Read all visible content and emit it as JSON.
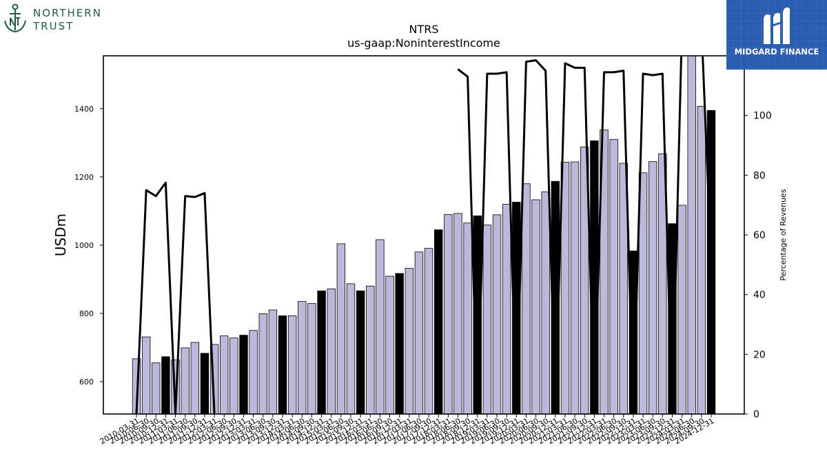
{
  "logos": {
    "left_line1": "NORTHERN",
    "left_line2": "TRUST",
    "right_text": "MIDGARD FINANCE"
  },
  "colors": {
    "bar_regular": "#bcb8d9",
    "bar_q4": "#000000",
    "line": "#000000",
    "brand_green": "#1f5a46",
    "brand_blue": "#2a5cb0"
  },
  "chart_data": {
    "type": "bar",
    "title": "NTRS",
    "subtitle": "us-gaap:NoninterestIncome",
    "ylabel": "USDm",
    "y2label": "Percentage of Revenues",
    "ylim": [
      505,
      1555
    ],
    "y2lim": [
      0,
      120
    ],
    "yticks": [
      600,
      800,
      1000,
      1200,
      1400
    ],
    "y2ticks": [
      0,
      20,
      40,
      60,
      80,
      100
    ],
    "categories": [
      "2010-03-31",
      "2010-06-30",
      "2010-09-30",
      "2010-12-31",
      "2011-03-31",
      "2011-06-30",
      "2011-09-30",
      "2011-12-31",
      "2012-03-31",
      "2012-06-30",
      "2012-09-30",
      "2012-12-31",
      "2013-03-31",
      "2013-06-30",
      "2013-09-30",
      "2013-12-31",
      "2014-03-31",
      "2014-06-30",
      "2014-09-30",
      "2014-12-31",
      "2015-03-31",
      "2015-06-30",
      "2015-09-30",
      "2015-12-31",
      "2016-03-31",
      "2016-06-30",
      "2016-09-30",
      "2016-12-31",
      "2017-03-31",
      "2017-06-30",
      "2017-09-30",
      "2017-12-31",
      "2018-03-31",
      "2018-06-30",
      "2018-09-30",
      "2018-12-31",
      "2019-03-31",
      "2019-06-30",
      "2019-09-30",
      "2019-12-31",
      "2020-03-31",
      "2020-06-30",
      "2020-09-30",
      "2020-12-31",
      "2021-03-31",
      "2021-06-30",
      "2021-09-30",
      "2021-12-31",
      "2022-03-31",
      "2022-06-30",
      "2022-09-30",
      "2022-12-31",
      "2023-03-31",
      "2023-06-30",
      "2023-09-30",
      "2023-12-31",
      "2024-03-31",
      "2024-06-30",
      "2024-09-30",
      "2024-12-31"
    ],
    "series": [
      {
        "type": "bar",
        "values": [
          667,
          731,
          655,
          673,
          664,
          699,
          715,
          683,
          709,
          734,
          728,
          736,
          750,
          799,
          810,
          793,
          793,
          835,
          829,
          866,
          872,
          1004,
          887,
          866,
          880,
          1016,
          909,
          917,
          932,
          980,
          991,
          1045,
          1090,
          1093,
          1065,
          1086,
          1059,
          1089,
          1120,
          1126,
          1180,
          1133,
          1156,
          1187,
          1243,
          1244,
          1288,
          1306,
          1338,
          1310,
          1240,
          983,
          1212,
          1245,
          1268,
          1063,
          1117,
          1620,
          1407,
          1395
        ]
      },
      {
        "type": "line",
        "axis": "right",
        "values": [
          0,
          75,
          73,
          77.5,
          0,
          73,
          72.7,
          74,
          0,
          null,
          null,
          null,
          null,
          null,
          null,
          null,
          null,
          null,
          null,
          null,
          null,
          null,
          null,
          null,
          null,
          null,
          null,
          null,
          null,
          null,
          null,
          null,
          null,
          115.5,
          113,
          0,
          114,
          114,
          114.5,
          0,
          118,
          118.5,
          115,
          0,
          117.5,
          116,
          116,
          0,
          114.5,
          114.5,
          115,
          0,
          114,
          113.5,
          114,
          0,
          130,
          133,
          130,
          50
        ]
      }
    ],
    "q4_highlight": true,
    "grid": false
  }
}
